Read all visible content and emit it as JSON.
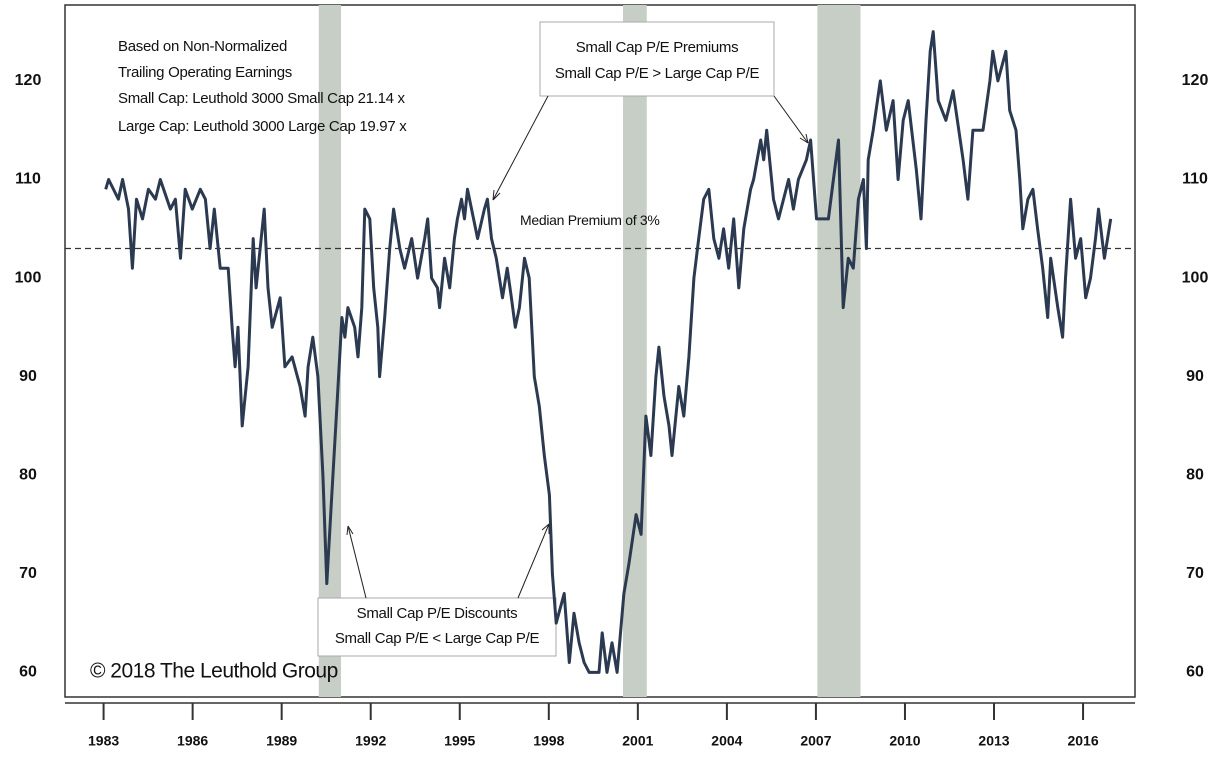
{
  "chart_data": {
    "type": "line",
    "notes": [
      "Based on Non-Normalized",
      "Trailing Operating Earnings",
      "Small Cap: Leuthold 3000 Small Cap  21.14 x",
      "Large Cap: Leuthold 3000 Large Cap  19.97 x"
    ],
    "premium_box": [
      "Small Cap P/E Premiums",
      "Small Cap P/E > Large Cap P/E"
    ],
    "discount_box": [
      "Small Cap P/E Discounts",
      "Small Cap P/E < Large Cap P/E"
    ],
    "copyright": "© 2018 The Leuthold Group",
    "reference_line": {
      "value": 103,
      "label": "Median Premium of 3%"
    },
    "shaded_regions": [
      [
        1990.25,
        1991.0
      ],
      [
        2000.5,
        2001.3
      ],
      [
        2007.05,
        2008.5
      ]
    ],
    "shade_color": "#c6cec5",
    "xlim": [
      1981.7,
      2017.75
    ],
    "xticks": [
      1983,
      1986,
      1989,
      1992,
      1995,
      1998,
      2001,
      2004,
      2007,
      2010,
      2013,
      2016
    ],
    "ylim": [
      57.5,
      127.7
    ],
    "yticks": [
      60,
      70,
      80,
      90,
      100,
      110,
      120
    ],
    "y2lim": [
      57.5,
      127.7
    ],
    "y2ticks": [
      60,
      70,
      80,
      90,
      100,
      110,
      120
    ],
    "series": [
      {
        "color": "#2b3a50",
        "x": [
          1983.07,
          1983.17,
          1983.5,
          1983.64,
          1983.84,
          1983.97,
          1984.11,
          1984.31,
          1984.51,
          1984.75,
          1984.91,
          1985.25,
          1985.42,
          1985.59,
          1985.75,
          1985.99,
          1986.26,
          1986.43,
          1986.59,
          1986.73,
          1986.93,
          1987.2,
          1987.33,
          1987.43,
          1987.53,
          1987.67,
          1987.87,
          1988.04,
          1988.14,
          1988.41,
          1988.54,
          1988.68,
          1988.95,
          1989.11,
          1989.35,
          1989.62,
          1989.79,
          1989.89,
          1990.05,
          1990.22,
          1990.39,
          1990.52,
          1990.69,
          1990.86,
          1991.03,
          1991.13,
          1991.23,
          1991.46,
          1991.57,
          1991.7,
          1991.8,
          1991.97,
          1992.1,
          1992.24,
          1992.3,
          1992.47,
          1992.64,
          1992.77,
          1992.98,
          1993.14,
          1993.38,
          1993.58,
          1993.82,
          1993.92,
          1994.05,
          1994.25,
          1994.32,
          1994.49,
          1994.66,
          1994.82,
          1994.92,
          1995.06,
          1995.16,
          1995.26,
          1995.6,
          1995.83,
          1995.93,
          1996.07,
          1996.23,
          1996.44,
          1996.6,
          1996.74,
          1996.87,
          1997.01,
          1997.18,
          1997.34,
          1997.51,
          1997.68,
          1997.85,
          1998.02,
          1998.12,
          1998.25,
          1998.52,
          1998.69,
          1998.85,
          1999.02,
          1999.19,
          1999.36,
          1999.69,
          1999.8,
          1999.96,
          2000.13,
          2000.3,
          2000.53,
          2000.7,
          2000.94,
          2001.11,
          2001.27,
          2001.44,
          2001.61,
          2001.71,
          2001.88,
          2002.05,
          2002.15,
          2002.38,
          2002.55,
          2002.72,
          2002.89,
          2003.05,
          2003.22,
          2003.39,
          2003.56,
          2003.73,
          2003.89,
          2004.06,
          2004.23,
          2004.4,
          2004.57,
          2004.8,
          2004.9,
          2005.14,
          2005.24,
          2005.34,
          2005.57,
          2005.74,
          2006.08,
          2006.24,
          2006.41,
          2006.68,
          2006.82,
          2007.02,
          2007.42,
          2007.59,
          2007.76,
          2007.92,
          2008.09,
          2008.26,
          2008.43,
          2008.6,
          2008.7,
          2008.76,
          2008.93,
          2009.17,
          2009.37,
          2009.6,
          2009.77,
          2009.94,
          2010.11,
          2010.38,
          2010.54,
          2010.71,
          2010.85,
          2010.95,
          2011.12,
          2011.38,
          2011.62,
          2011.96,
          2012.12,
          2012.29,
          2012.63,
          2012.86,
          2012.96,
          2013.13,
          2013.4,
          2013.53,
          2013.74,
          2013.87,
          2013.97,
          2014.14,
          2014.31,
          2014.47,
          2014.64,
          2014.81,
          2014.91,
          2015.15,
          2015.31,
          2015.41,
          2015.58,
          2015.75,
          2015.92,
          2016.09,
          2016.25,
          2016.42,
          2016.52,
          2016.72,
          2016.93
        ],
        "values": [
          109,
          110,
          108,
          110,
          107,
          101,
          108,
          106,
          109,
          108,
          110,
          107,
          108,
          102,
          109,
          107,
          109,
          108,
          103,
          107,
          101,
          101,
          95,
          91,
          95,
          85,
          91,
          104,
          99,
          107,
          99,
          95,
          98,
          91,
          92,
          89,
          86,
          91,
          94,
          90,
          80,
          69,
          78,
          87,
          96,
          94,
          97,
          95,
          92,
          97,
          107,
          106,
          99,
          95,
          90,
          96,
          103,
          107,
          103,
          101,
          104,
          100,
          104,
          106,
          100,
          99,
          97,
          102,
          99,
          104,
          106,
          108,
          106,
          109,
          104,
          107,
          108,
          104,
          102,
          98,
          101,
          98,
          95,
          97,
          102,
          100,
          90,
          87,
          82,
          78,
          70,
          65,
          68,
          61,
          66,
          63,
          61,
          60,
          60,
          64,
          60,
          63,
          60,
          68,
          71,
          76,
          74,
          86,
          82,
          90,
          93,
          88,
          85,
          82,
          89,
          86,
          92,
          100,
          104,
          108,
          109,
          104,
          102,
          105,
          101,
          106,
          99,
          105,
          109,
          110,
          114,
          112,
          115,
          108,
          106,
          110,
          107,
          110,
          112,
          114,
          106,
          106,
          110,
          114,
          97,
          102,
          101,
          108,
          110,
          103,
          112,
          115,
          120,
          115,
          118,
          110,
          116,
          118,
          111,
          106,
          116,
          123,
          125,
          118,
          116,
          119,
          112,
          108,
          115,
          115,
          120,
          123,
          120,
          123,
          117,
          115,
          110,
          105,
          108,
          109,
          105,
          101,
          96,
          102,
          97,
          94,
          100,
          108,
          102,
          104,
          98,
          100,
          104,
          107,
          102,
          106
        ]
      }
    ]
  }
}
